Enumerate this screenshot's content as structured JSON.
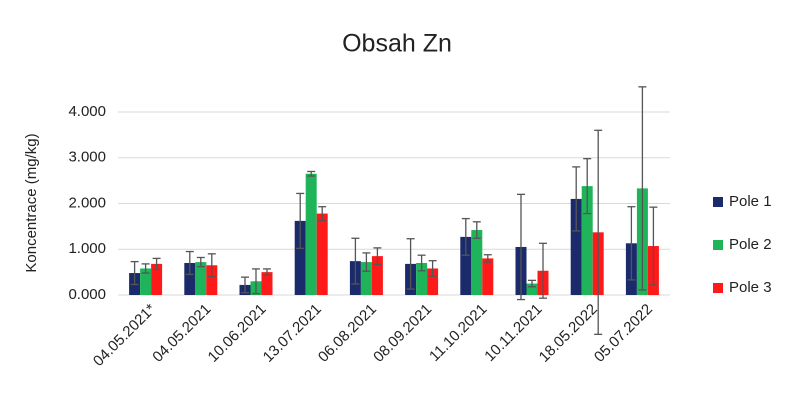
{
  "chart_data": {
    "type": "bar",
    "title": "Obsah Zn",
    "y_label": "Koncentrace (mg/kg)",
    "categories": [
      "04.05.2021*",
      "04.05.2021",
      "10.06.2021",
      "13.07.2021",
      "06.08.2021",
      "08.09.2021",
      "11.10.2021",
      "10.11.2021",
      "18.05.2022",
      "05.07.2022"
    ],
    "series": [
      {
        "name": "Pole 1",
        "color": "#1b2a6b",
        "values": [
          0.48,
          0.7,
          0.22,
          1.62,
          0.74,
          0.68,
          1.27,
          1.05,
          2.1,
          1.13
        ],
        "errors": [
          0.25,
          0.25,
          0.17,
          0.6,
          0.5,
          0.55,
          0.4,
          1.15,
          0.7,
          0.8
        ]
      },
      {
        "name": "Pole 2",
        "color": "#1fb45a",
        "values": [
          0.58,
          0.72,
          0.3,
          2.65,
          0.72,
          0.7,
          1.42,
          0.25,
          2.38,
          2.33
        ],
        "errors": [
          0.1,
          0.1,
          0.27,
          0.05,
          0.2,
          0.17,
          0.18,
          0.07,
          0.6,
          2.22
        ]
      },
      {
        "name": "Pole 3",
        "color": "#ff1a1a",
        "values": [
          0.68,
          0.65,
          0.5,
          1.78,
          0.85,
          0.58,
          0.8,
          0.53,
          1.37,
          1.07
        ],
        "errors": [
          0.12,
          0.25,
          0.07,
          0.15,
          0.18,
          0.17,
          0.08,
          0.6,
          2.23,
          0.85
        ]
      }
    ],
    "ylim": [
      0,
      4
    ],
    "yticks": [
      {
        "value": 0,
        "label": "0.000"
      },
      {
        "value": 1,
        "label": "1.000"
      },
      {
        "value": 2,
        "label": "2.000"
      },
      {
        "value": 3,
        "label": "3.000"
      },
      {
        "value": 4,
        "label": "4.000"
      }
    ],
    "grid": true,
    "legend": "right"
  }
}
